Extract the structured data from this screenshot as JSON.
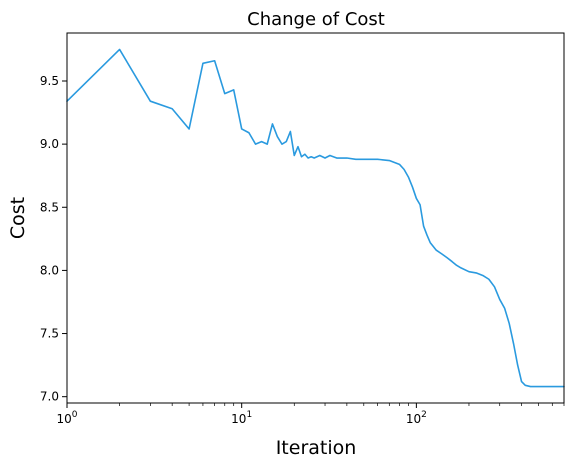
{
  "chart_data": {
    "type": "line",
    "title": "Change of Cost",
    "xlabel": "Iteration",
    "ylabel": "Cost",
    "xscale": "log",
    "xlim": [
      1,
      700
    ],
    "ylim": [
      6.95,
      9.88
    ],
    "grid": false,
    "legend": "none",
    "x_ticks": [
      {
        "base": "10",
        "exp": "0",
        "value": 1
      },
      {
        "base": "10",
        "exp": "1",
        "value": 10
      },
      {
        "base": "10",
        "exp": "2",
        "value": 100
      }
    ],
    "y_ticks": [
      {
        "label": "7.0",
        "value": 7.0
      },
      {
        "label": "7.5",
        "value": 7.5
      },
      {
        "label": "8.0",
        "value": 8.0
      },
      {
        "label": "8.5",
        "value": 8.5
      },
      {
        "label": "9.0",
        "value": 9.0
      },
      {
        "label": "9.5",
        "value": 9.5
      }
    ],
    "series": [
      {
        "color": "#2a9adf",
        "x": [
          1,
          2,
          3,
          4,
          5,
          6,
          7,
          8,
          9,
          10,
          11,
          12,
          13,
          14,
          15,
          16,
          17,
          18,
          19,
          20,
          21,
          22,
          23,
          24,
          25,
          26,
          28,
          30,
          32,
          35,
          40,
          45,
          50,
          60,
          70,
          80,
          85,
          90,
          95,
          100,
          105,
          110,
          115,
          120,
          130,
          140,
          150,
          160,
          170,
          180,
          200,
          220,
          240,
          260,
          280,
          300,
          320,
          340,
          360,
          380,
          400,
          420,
          450,
          500,
          550,
          600,
          650,
          700
        ],
        "y": [
          9.34,
          9.75,
          9.34,
          9.28,
          9.12,
          9.64,
          9.66,
          9.4,
          9.43,
          9.12,
          9.09,
          9.0,
          9.02,
          9.0,
          9.16,
          9.06,
          9.0,
          9.02,
          9.1,
          8.91,
          8.98,
          8.9,
          8.92,
          8.89,
          8.9,
          8.89,
          8.91,
          8.89,
          8.91,
          8.89,
          8.89,
          8.88,
          8.88,
          8.88,
          8.87,
          8.84,
          8.8,
          8.74,
          8.66,
          8.57,
          8.52,
          8.35,
          8.28,
          8.22,
          8.16,
          8.13,
          8.1,
          8.07,
          8.04,
          8.02,
          7.99,
          7.98,
          7.96,
          7.93,
          7.87,
          7.77,
          7.7,
          7.58,
          7.42,
          7.25,
          7.12,
          7.09,
          7.08,
          7.08,
          7.08,
          7.08,
          7.08,
          7.08
        ]
      }
    ]
  }
}
